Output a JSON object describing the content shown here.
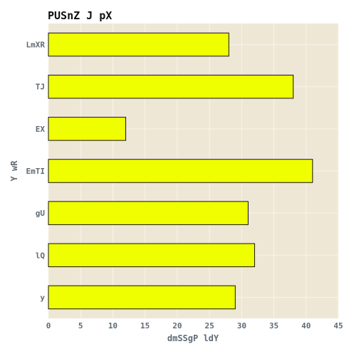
{
  "chart_data": {
    "type": "bar",
    "orientation": "horizontal",
    "title": "PUSnZ J pX",
    "xlabel": "dmSSgP ldY",
    "ylabel": "Y wR",
    "categories": [
      "LmXR",
      "TJ",
      "EX",
      "EmTI",
      "gU",
      "lQ",
      "y"
    ],
    "values": [
      28,
      38,
      12,
      41,
      31,
      32,
      29
    ],
    "xlim": [
      0,
      45
    ],
    "xticks": [
      "0",
      "5",
      "10",
      "15",
      "20",
      "25",
      "30",
      "35",
      "40",
      "45"
    ],
    "grid": true,
    "legend": "none",
    "colors": {
      "bar_fill": "#f0ff00",
      "bar_stroke": "#111111",
      "plot_background": "#efe7d6",
      "grid": "#f8f4ea",
      "axis_text": "#5f6b76",
      "title_text": "#111111"
    }
  }
}
